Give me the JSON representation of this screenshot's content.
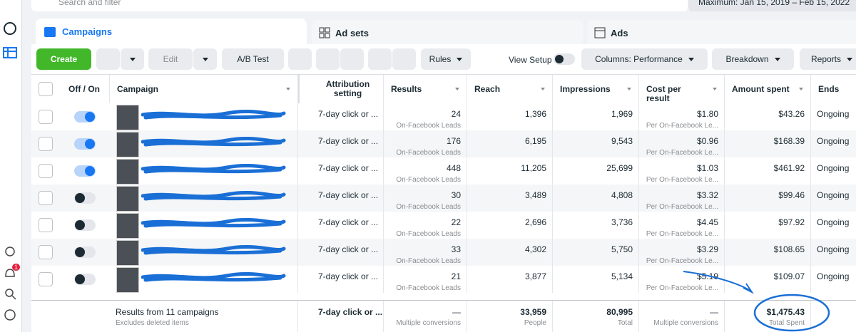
{
  "search": "Search and filter",
  "date_range": "Maximum: Jan 15, 2019 – Feb 15, 2022",
  "tabs": [
    "Campaigns",
    "Ad sets",
    "Ads"
  ],
  "toolbar": {
    "create": "Create",
    "edit": "Edit",
    "ab_test": "A/B Test",
    "rules": "Rules",
    "view_setup": "View Setup",
    "columns": "Columns: Performance",
    "breakdown": "Breakdown",
    "reports": "Reports"
  },
  "notification_count": "1",
  "table": {
    "headers": [
      "Off / On",
      "Campaign",
      "Attribution setting",
      "Results",
      "Reach",
      "Impressions",
      "Cost per result",
      "Amount spent",
      "Ends"
    ],
    "rows": [
      {
        "on": true,
        "attribution": "7-day click or ...",
        "results": "24",
        "results_type": "On-Facebook Leads",
        "reach": "1,396",
        "impressions": "1,969",
        "cost_per_result": "$1.80",
        "cost_type": "Per On-Facebook Le...",
        "amount_spent": "$43.26",
        "ends": "Ongoing"
      },
      {
        "on": true,
        "attribution": "7-day click or ...",
        "results": "176",
        "results_type": "On-Facebook Leads",
        "reach": "6,195",
        "impressions": "9,543",
        "cost_per_result": "$0.96",
        "cost_type": "Per On-Facebook Le...",
        "amount_spent": "$168.39",
        "ends": "Ongoing"
      },
      {
        "on": true,
        "attribution": "7-day click or ...",
        "results": "448",
        "results_type": "On-Facebook Leads",
        "reach": "11,205",
        "impressions": "25,699",
        "cost_per_result": "$1.03",
        "cost_type": "Per On-Facebook Le...",
        "amount_spent": "$461.92",
        "ends": "Ongoing"
      },
      {
        "on": false,
        "attribution": "7-day click or ...",
        "results": "30",
        "results_type": "On-Facebook Leads",
        "reach": "3,489",
        "impressions": "4,808",
        "cost_per_result": "$3.32",
        "cost_type": "Per On-Facebook Le...",
        "amount_spent": "$99.46",
        "ends": "Ongoing"
      },
      {
        "on": false,
        "attribution": "7-day click or ...",
        "results": "22",
        "results_type": "On-Facebook Leads",
        "reach": "2,696",
        "impressions": "3,736",
        "cost_per_result": "$4.45",
        "cost_type": "Per On-Facebook Le...",
        "amount_spent": "$97.92",
        "ends": "Ongoing"
      },
      {
        "on": false,
        "attribution": "7-day click or ...",
        "results": "33",
        "results_type": "On-Facebook Leads",
        "reach": "4,302",
        "impressions": "5,750",
        "cost_per_result": "$3.29",
        "cost_type": "Per On-Facebook Le...",
        "amount_spent": "$108.65",
        "ends": "Ongoing"
      },
      {
        "on": false,
        "attribution": "7-day click or ...",
        "results": "21",
        "results_type": "On-Facebook Leads",
        "reach": "3,877",
        "impressions": "5,134",
        "cost_per_result": "$5.19",
        "cost_type": "Per On-Facebook Le...",
        "amount_spent": "$109.07",
        "ends": "Ongoing"
      }
    ],
    "footer": {
      "title": "Results from 11 campaigns",
      "note": "Excludes deleted items",
      "attribution": "7-day click or ...",
      "results": "—",
      "results_type": "Multiple conversions",
      "reach": "33,959",
      "reach_type": "People",
      "impressions": "80,995",
      "impressions_type": "Total",
      "cost_per_result": "—",
      "cost_type": "Multiple conversions",
      "amount_spent": "$1,475.43",
      "amount_type": "Total Spent"
    }
  }
}
